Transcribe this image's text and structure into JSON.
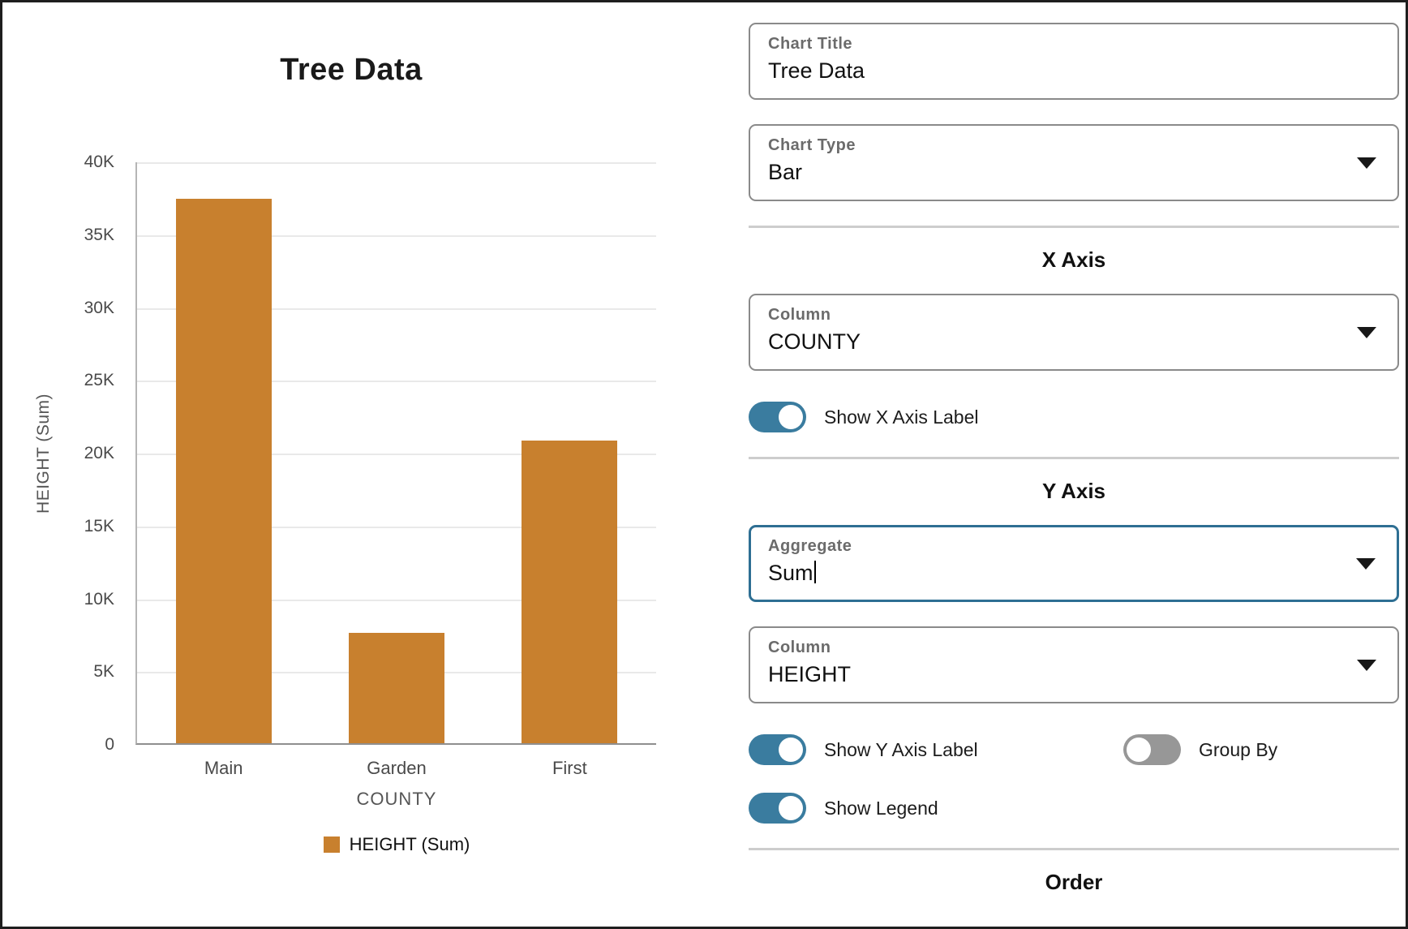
{
  "chart_data": {
    "type": "bar",
    "title": "Tree Data",
    "categories": [
      "Main",
      "Garden",
      "First"
    ],
    "values": [
      37400,
      7600,
      20800
    ],
    "xlabel": "COUNTY",
    "ylabel": "HEIGHT (Sum)",
    "ylim": [
      0,
      40000
    ],
    "ytick_step": 5000,
    "ytick_labels": [
      "0",
      "5K",
      "10K",
      "15K",
      "20K",
      "25K",
      "30K",
      "35K",
      "40K"
    ],
    "grid": true,
    "legend_position": "bottom",
    "legend_label": "HEIGHT (Sum)"
  },
  "panel": {
    "chart_title_field": {
      "label": "Chart Title",
      "value": "Tree Data"
    },
    "chart_type_field": {
      "label": "Chart Type",
      "value": "Bar"
    },
    "x_axis": {
      "heading": "X Axis",
      "column_field": {
        "label": "Column",
        "value": "COUNTY"
      },
      "show_label_toggle": {
        "label": "Show X Axis Label",
        "on": true
      }
    },
    "y_axis": {
      "heading": "Y Axis",
      "aggregate_field": {
        "label": "Aggregate",
        "value": "Sum"
      },
      "column_field": {
        "label": "Column",
        "value": "HEIGHT"
      },
      "show_label_toggle": {
        "label": "Show Y Axis Label",
        "on": true
      },
      "group_by_toggle": {
        "label": "Group By",
        "on": false
      },
      "show_legend_toggle": {
        "label": "Show Legend",
        "on": true
      }
    },
    "order_section": {
      "heading": "Order"
    }
  },
  "colors": {
    "bar": "#c8802e",
    "toggle_on": "#3a7c9f",
    "toggle_off": "#979797",
    "focus_border": "#2e6f93"
  }
}
